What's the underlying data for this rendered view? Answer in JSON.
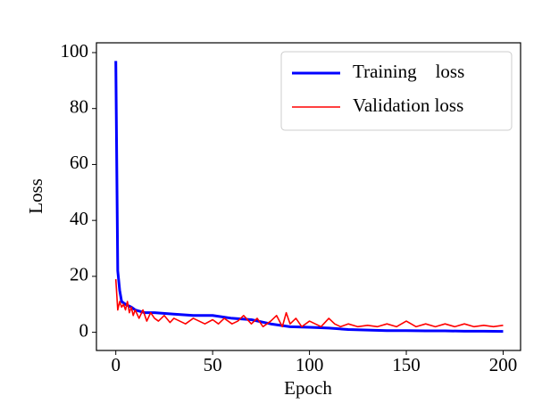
{
  "chart_data": {
    "type": "line",
    "xlabel": "Epoch",
    "ylabel": "Loss",
    "xlim": [
      -10,
      209
    ],
    "ylim": [
      -6.5,
      103.5
    ],
    "xticks": [
      0,
      50,
      100,
      150,
      200
    ],
    "yticks": [
      0,
      20,
      40,
      60,
      80,
      100
    ],
    "legend": "upper right",
    "grid": false,
    "series": [
      {
        "name": "Training    loss",
        "color": "#0000ff",
        "width": 3,
        "x": [
          0,
          1,
          2,
          3,
          5,
          8,
          10,
          15,
          20,
          30,
          40,
          50,
          60,
          70,
          80,
          90,
          100,
          110,
          120,
          130,
          140,
          150,
          160,
          170,
          180,
          190,
          200
        ],
        "values": [
          97,
          22,
          15,
          11,
          10,
          9,
          8,
          7,
          7,
          6.5,
          6,
          6,
          5,
          4.5,
          3,
          2,
          1.8,
          1.5,
          1,
          0.8,
          0.6,
          0.6,
          0.5,
          0.5,
          0.4,
          0.4,
          0.3
        ]
      },
      {
        "name": "Validation loss",
        "color": "#ff0000",
        "width": 1.6,
        "x": [
          0,
          1,
          2,
          3,
          4,
          5,
          6,
          7,
          8,
          9,
          10,
          12,
          14,
          16,
          18,
          20,
          22,
          25,
          28,
          30,
          33,
          36,
          40,
          43,
          46,
          50,
          53,
          56,
          60,
          63,
          66,
          70,
          73,
          76,
          80,
          83,
          86,
          88,
          90,
          93,
          96,
          100,
          103,
          106,
          110,
          113,
          116,
          120,
          125,
          130,
          135,
          140,
          145,
          150,
          155,
          160,
          165,
          170,
          175,
          180,
          185,
          190,
          195,
          200
        ],
        "values": [
          19,
          8,
          11,
          9,
          10,
          8,
          11,
          7,
          9,
          6,
          8,
          5,
          8,
          4,
          7,
          5,
          4,
          6,
          3.5,
          5,
          4,
          3,
          5,
          4,
          3,
          4.5,
          3,
          5,
          3,
          4,
          6,
          3,
          5,
          2,
          4,
          6,
          2,
          7,
          3,
          5,
          2,
          4,
          3,
          2,
          5,
          3,
          2,
          3,
          2,
          2.5,
          2,
          3,
          2,
          4,
          2,
          3,
          2,
          3,
          2,
          3,
          2,
          2.5,
          2,
          2.5
        ]
      }
    ]
  }
}
